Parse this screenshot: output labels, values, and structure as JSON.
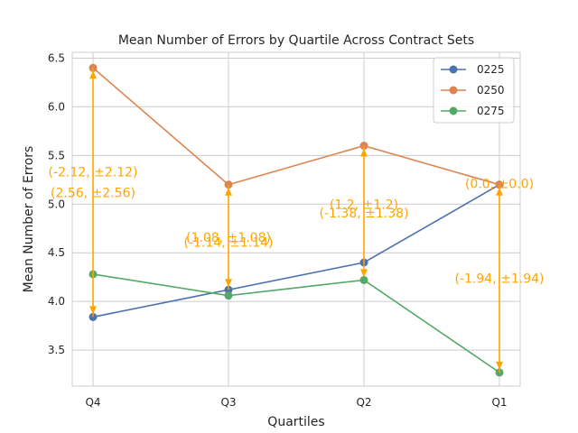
{
  "chart_data": {
    "type": "line",
    "title": "Mean Number of Errors by Quartile Across Contract Sets",
    "xlabel": "Quartiles",
    "ylabel": "Mean Number of Errors",
    "categories": [
      "Q4",
      "Q3",
      "Q2",
      "Q1"
    ],
    "ylim": [
      3.13,
      6.56
    ],
    "yticks": [
      3.5,
      4.0,
      4.5,
      5.0,
      5.5,
      6.0,
      6.5
    ],
    "ytick_labels": [
      "3.5",
      "4.0",
      "4.5",
      "5.0",
      "5.5",
      "6.0",
      "6.5"
    ],
    "grid": true,
    "legend_position": "top-right",
    "series": [
      {
        "name": "0225",
        "color": "#4c72b0",
        "values": [
          3.84,
          4.12,
          4.4,
          5.2
        ]
      },
      {
        "name": "0250",
        "color": "#dd8452",
        "values": [
          6.4,
          5.2,
          5.6,
          5.2
        ]
      },
      {
        "name": "0275",
        "color": "#55a868",
        "values": [
          4.28,
          4.06,
          4.22,
          3.27
        ]
      }
    ],
    "annotation_color": "#ffa500",
    "arrows": [
      {
        "category": "Q4",
        "from": 3.84,
        "to": 6.4
      },
      {
        "category": "Q4",
        "from": 6.4,
        "to": 3.84
      },
      {
        "category": "Q3",
        "from": 4.12,
        "to": 5.2
      },
      {
        "category": "Q3",
        "from": 5.2,
        "to": 4.12
      },
      {
        "category": "Q2",
        "from": 4.4,
        "to": 5.6
      },
      {
        "category": "Q2",
        "from": 5.6,
        "to": 4.22
      },
      {
        "category": "Q1",
        "from": 3.27,
        "to": 5.2
      },
      {
        "category": "Q1",
        "from": 5.2,
        "to": 3.27
      }
    ],
    "annotations": [
      {
        "text": "(-2.12, ±2.12)",
        "category": "Q4",
        "y": 5.33
      },
      {
        "text": "(2.56, ±2.56)",
        "category": "Q4",
        "y": 5.12
      },
      {
        "text": "(1.08, ±1.08)",
        "category": "Q3",
        "y": 4.66
      },
      {
        "text": "(-1.14, ±1.14)",
        "category": "Q3",
        "y": 4.61
      },
      {
        "text": "(1.2, ±1.2)",
        "category": "Q2",
        "y": 5.0
      },
      {
        "text": "(-1.38, ±1.38)",
        "category": "Q2",
        "y": 4.91
      },
      {
        "text": "(0.0, ±0.0)",
        "category": "Q1",
        "y": 5.21
      },
      {
        "text": "(-1.94, ±1.94)",
        "category": "Q1",
        "y": 4.24
      }
    ]
  }
}
